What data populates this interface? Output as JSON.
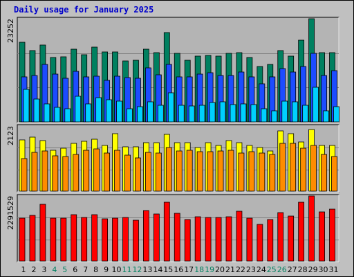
{
  "title": "Daily usage for January 2025",
  "chart_data": [
    {
      "type": "bar",
      "panel": "top",
      "y_tick_label": "23252",
      "ylim": [
        0,
        23252
      ],
      "categories": [
        "1",
        "2",
        "3",
        "4",
        "5",
        "6",
        "7",
        "8",
        "9",
        "10",
        "11",
        "12",
        "13",
        "14",
        "15",
        "16",
        "17",
        "18",
        "19",
        "20",
        "21",
        "22",
        "23",
        "24",
        "25",
        "26",
        "27",
        "28",
        "29",
        "30",
        "31"
      ],
      "series": [
        {
          "color": "#008060",
          "values": [
            17950,
            16120,
            17330,
            14440,
            14630,
            16410,
            15060,
            16850,
            15710,
            15730,
            13770,
            13920,
            16380,
            15530,
            20200,
            15390,
            13900,
            14790,
            15020,
            14840,
            15400,
            15610,
            14500,
            12480,
            12890,
            16140,
            14750,
            18340,
            23252,
            15590,
            15620
          ]
        },
        {
          "color": "#1c4cff",
          "values": [
            10090,
            10380,
            12950,
            10700,
            9850,
            11350,
            10180,
            10330,
            9320,
            10250,
            9920,
            9860,
            12210,
            10650,
            12980,
            10130,
            10140,
            10750,
            11070,
            10500,
            10480,
            11180,
            10200,
            8520,
            10070,
            12060,
            11250,
            12540,
            15410,
            10500,
            11540
          ]
        },
        {
          "color": "#00d0ff",
          "values": [
            7390,
            5170,
            4060,
            3330,
            2890,
            5700,
            4130,
            5480,
            5060,
            4750,
            2890,
            3380,
            4480,
            3740,
            6600,
            3740,
            3630,
            3810,
            4410,
            4500,
            3870,
            4110,
            3840,
            2890,
            2560,
            4650,
            4450,
            3740,
            7730,
            2510,
            3360
          ]
        }
      ]
    },
    {
      "type": "bar",
      "panel": "middle",
      "y_tick_label": "2123",
      "ylim": [
        0,
        2123
      ],
      "categories": [
        "1",
        "2",
        "3",
        "4",
        "5",
        "6",
        "7",
        "8",
        "9",
        "10",
        "11",
        "12",
        "13",
        "14",
        "15",
        "16",
        "17",
        "18",
        "19",
        "20",
        "21",
        "22",
        "23",
        "24",
        "25",
        "26",
        "27",
        "28",
        "29",
        "30",
        "31"
      ],
      "series": [
        {
          "color": "#ffff00",
          "values": [
            1670,
            1770,
            1640,
            1340,
            1400,
            1560,
            1630,
            1690,
            1500,
            1870,
            1440,
            1440,
            1590,
            1590,
            1850,
            1590,
            1570,
            1430,
            1580,
            1490,
            1650,
            1590,
            1480,
            1430,
            1320,
            1960,
            1880,
            1610,
            2020,
            1490,
            1490
          ]
        },
        {
          "color": "#ff8c00",
          "values": [
            1060,
            1260,
            1320,
            1160,
            1120,
            1200,
            1340,
            1370,
            1240,
            1340,
            1170,
            1090,
            1270,
            1240,
            1430,
            1320,
            1340,
            1280,
            1280,
            1310,
            1340,
            1240,
            1290,
            1240,
            1200,
            1550,
            1550,
            1410,
            1490,
            1200,
            1140
          ]
        }
      ]
    },
    {
      "type": "bar",
      "panel": "bottom",
      "y_tick_label": "2291529",
      "ylim": [
        0,
        2291529
      ],
      "categories": [
        "1",
        "2",
        "3",
        "4",
        "5",
        "6",
        "7",
        "8",
        "9",
        "10",
        "11",
        "12",
        "13",
        "14",
        "15",
        "16",
        "17",
        "18",
        "19",
        "20",
        "21",
        "22",
        "23",
        "24",
        "25",
        "26",
        "27",
        "28",
        "29",
        "30",
        "31"
      ],
      "series": [
        {
          "color": "#ff0000",
          "values": [
            1520000,
            1620000,
            2000000,
            1500000,
            1510000,
            1640000,
            1540000,
            1630000,
            1480000,
            1520000,
            1540000,
            1450000,
            1770000,
            1650000,
            2070000,
            1690000,
            1470000,
            1550000,
            1540000,
            1530000,
            1560000,
            1750000,
            1500000,
            1290000,
            1470000,
            1700000,
            1580000,
            2060000,
            2291529,
            1730000,
            1820000
          ]
        }
      ]
    }
  ],
  "x_labels": [
    {
      "text": "1",
      "color": "#000000"
    },
    {
      "text": "2",
      "color": "#000000"
    },
    {
      "text": "3",
      "color": "#000000"
    },
    {
      "text": "4",
      "color": "#008060"
    },
    {
      "text": "5",
      "color": "#008060"
    },
    {
      "text": "6",
      "color": "#000000"
    },
    {
      "text": "7",
      "color": "#000000"
    },
    {
      "text": "8",
      "color": "#000000"
    },
    {
      "text": "9",
      "color": "#000000"
    },
    {
      "text": "10",
      "color": "#000000"
    },
    {
      "text": "11",
      "color": "#008060"
    },
    {
      "text": "12",
      "color": "#008060"
    },
    {
      "text": "13",
      "color": "#000000"
    },
    {
      "text": "14",
      "color": "#000000"
    },
    {
      "text": "15",
      "color": "#000000"
    },
    {
      "text": "16",
      "color": "#000000"
    },
    {
      "text": "17",
      "color": "#000000"
    },
    {
      "text": "18",
      "color": "#008060"
    },
    {
      "text": "19",
      "color": "#008060"
    },
    {
      "text": "20",
      "color": "#000000"
    },
    {
      "text": "21",
      "color": "#000000"
    },
    {
      "text": "22",
      "color": "#000000"
    },
    {
      "text": "23",
      "color": "#000000"
    },
    {
      "text": "24",
      "color": "#000000"
    },
    {
      "text": "25",
      "color": "#008060"
    },
    {
      "text": "26",
      "color": "#008060"
    },
    {
      "text": "27",
      "color": "#000000"
    },
    {
      "text": "28",
      "color": "#000000"
    },
    {
      "text": "29",
      "color": "#000000"
    },
    {
      "text": "30",
      "color": "#000000"
    },
    {
      "text": "31",
      "color": "#000000"
    }
  ]
}
